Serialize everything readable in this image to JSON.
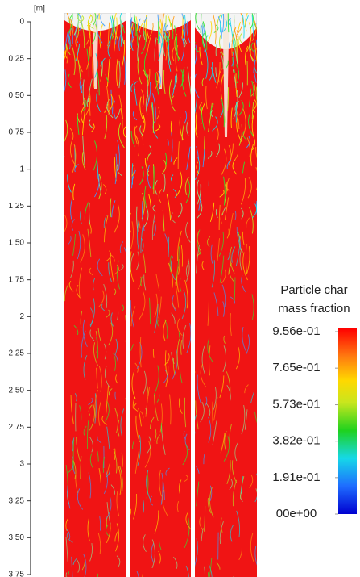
{
  "axis": {
    "unit": "[m]",
    "lim": [
      0,
      3.75
    ],
    "ticks": [
      0,
      {
        "value": 0.25,
        "label": "0.25"
      },
      {
        "value": 0.5,
        "label": "0.50"
      },
      {
        "value": 0.75,
        "label": "0.75"
      },
      1,
      {
        "value": 1.25,
        "label": "1.25"
      },
      {
        "value": 1.5,
        "label": "1.50"
      },
      {
        "value": 1.75,
        "label": "1.75"
      },
      2,
      {
        "value": 2.25,
        "label": "2.25"
      },
      {
        "value": 2.5,
        "label": "2.50"
      },
      {
        "value": 2.75,
        "label": "2.75"
      },
      3,
      {
        "value": 3.25,
        "label": "3.25"
      },
      {
        "value": 3.5,
        "label": "3.50"
      },
      {
        "value": 3.75,
        "label": "3.75"
      }
    ]
  },
  "colorbar": {
    "title": [
      "Particle char",
      "mass fraction"
    ],
    "lim": [
      0,
      0.956
    ],
    "ticks": [
      {
        "value": 0.956,
        "label": "9.56e-01"
      },
      {
        "value": 0.765,
        "label": "7.65e-01"
      },
      {
        "value": 0.573,
        "label": "5.73e-01"
      },
      {
        "value": 0.382,
        "label": "3.82e-01"
      },
      {
        "value": 0.191,
        "label": "1.91e-01"
      },
      {
        "value": 0,
        "label": "00e+00"
      }
    ]
  }
}
